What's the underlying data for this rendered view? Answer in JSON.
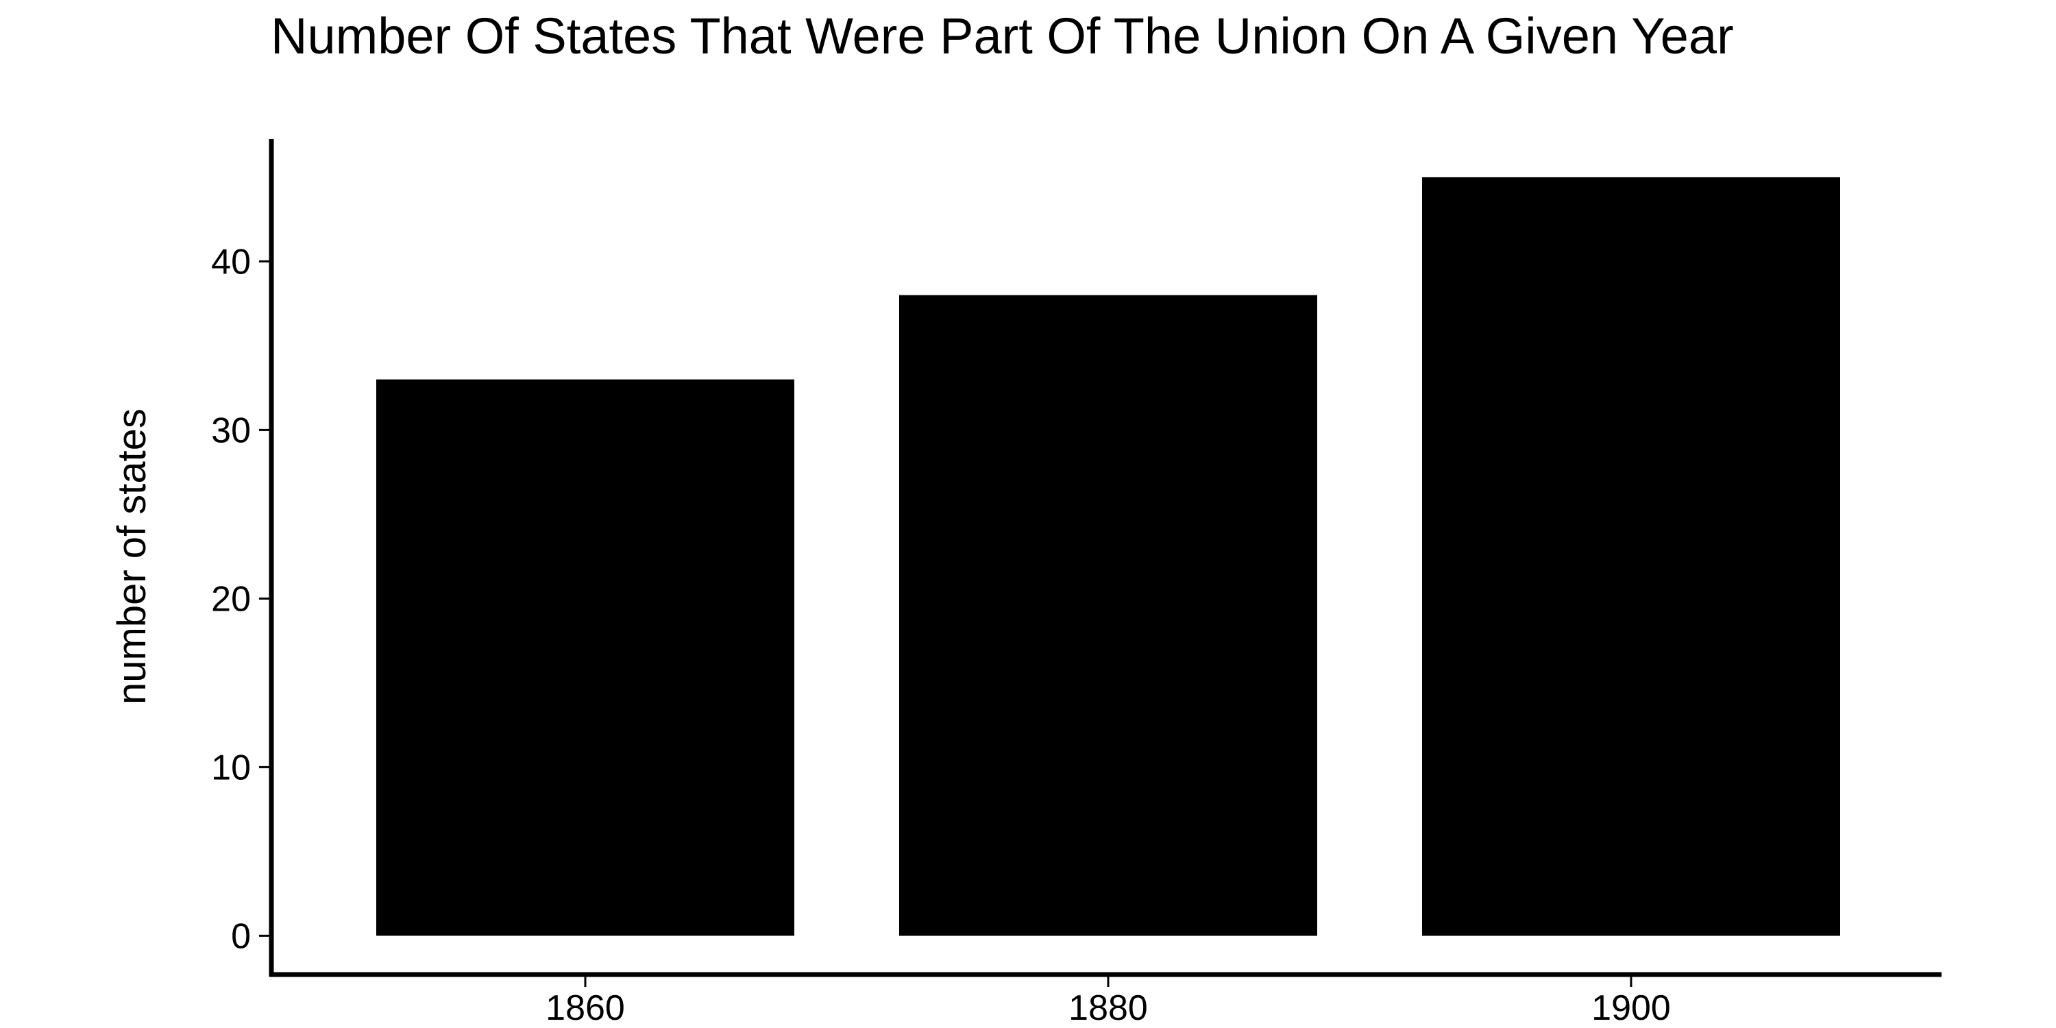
{
  "chart_data": {
    "type": "bar",
    "title": "Number Of States That Were Part Of The Union On A Given Year",
    "xlabel": "",
    "ylabel": "number of states",
    "categories": [
      "1860",
      "1880",
      "1900"
    ],
    "values": [
      33,
      38,
      45
    ],
    "ylim": [
      -2.3,
      47.25
    ],
    "yticks": [
      0,
      10,
      20,
      30,
      40
    ],
    "grid": false,
    "legend": "none",
    "colors": {
      "bar": "#000000",
      "axis": "#000000",
      "background": "#ffffff"
    }
  }
}
